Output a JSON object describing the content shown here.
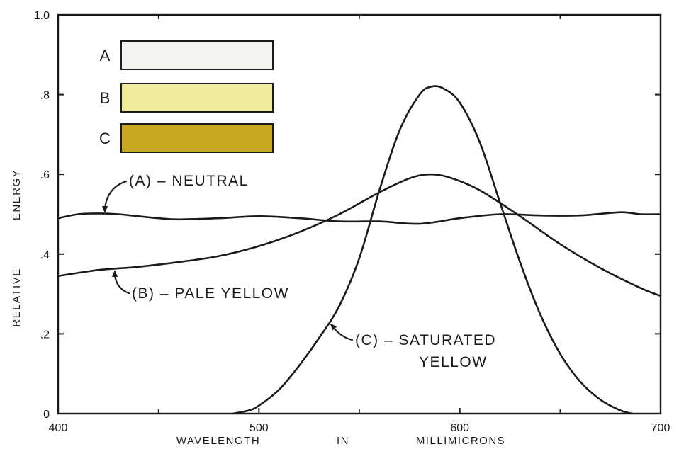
{
  "chart_data": {
    "type": "line",
    "title": "",
    "xlabel": "WAVELENGTH IN MILLIMICRONS",
    "xlabel_words": [
      "WAVELENGTH",
      "IN",
      "MILLIMICRONS"
    ],
    "ylabel": "RELATIVE ENERGY",
    "ylabel_words": [
      "RELATIVE",
      "ENERGY"
    ],
    "xlim": [
      400,
      700
    ],
    "ylim": [
      0,
      1.0
    ],
    "x_ticks": [
      400,
      500,
      600,
      700
    ],
    "x_tick_labels": [
      "400",
      "500",
      "600",
      "700"
    ],
    "x_minor_ticks": [
      450,
      550,
      650
    ],
    "y_ticks": [
      0,
      0.2,
      0.4,
      0.6,
      0.8,
      1.0
    ],
    "y_tick_labels": [
      "0",
      ".2",
      ".4",
      ".6",
      ".8",
      "1.0"
    ],
    "grid": false,
    "series": [
      {
        "name": "(A)-NEUTRAL",
        "x": [
          400,
          410,
          420,
          430,
          440,
          450,
          460,
          480,
          500,
          520,
          540,
          560,
          580,
          600,
          620,
          640,
          660,
          680,
          690,
          700
        ],
        "y": [
          0.49,
          0.5,
          0.502,
          0.5,
          0.495,
          0.49,
          0.487,
          0.49,
          0.495,
          0.49,
          0.482,
          0.482,
          0.476,
          0.49,
          0.5,
          0.497,
          0.497,
          0.505,
          0.5,
          0.5
        ]
      },
      {
        "name": "(B)-PALE YELLOW",
        "x": [
          400,
          420,
          440,
          460,
          480,
          500,
          520,
          540,
          560,
          575,
          585,
          595,
          610,
          630,
          650,
          670,
          690,
          700
        ],
        "y": [
          0.345,
          0.36,
          0.368,
          0.38,
          0.395,
          0.42,
          0.455,
          0.5,
          0.555,
          0.59,
          0.6,
          0.592,
          0.56,
          0.495,
          0.425,
          0.365,
          0.315,
          0.295
        ]
      },
      {
        "name": "(C)-SATURATED YELLOW",
        "x": [
          487,
          495,
          500,
          510,
          520,
          530,
          540,
          550,
          560,
          570,
          580,
          586,
          592,
          600,
          610,
          620,
          630,
          640,
          650,
          660,
          670,
          680,
          686
        ],
        "y": [
          0.0,
          0.008,
          0.02,
          0.06,
          0.12,
          0.19,
          0.27,
          0.39,
          0.56,
          0.71,
          0.8,
          0.82,
          0.815,
          0.78,
          0.68,
          0.53,
          0.38,
          0.25,
          0.15,
          0.08,
          0.035,
          0.008,
          0.0
        ]
      }
    ],
    "annotations": [
      {
        "text": "(A)-NEUTRAL",
        "lines": [
          "(A) – NEUTRAL"
        ],
        "points_to": {
          "x": 422,
          "y": 0.502
        }
      },
      {
        "text": "(B)-PALE YELLOW",
        "lines": [
          "(B) – PALE  YELLOW"
        ],
        "points_to": {
          "x": 428,
          "y": 0.365
        }
      },
      {
        "text": "(C)-SATURATED YELLOW",
        "lines": [
          "(C) – SATURATED",
          "YELLOW"
        ],
        "points_to": {
          "x": 537,
          "y": 0.235
        }
      }
    ],
    "swatches": [
      {
        "label": "A",
        "color": "#f2f2ee",
        "description": "neutral"
      },
      {
        "label": "B",
        "color": "#f0ec9c",
        "description": "pale yellow"
      },
      {
        "label": "C",
        "color": "#c9a81e",
        "description": "saturated yellow"
      }
    ],
    "line_color": "#1a1a1a"
  }
}
